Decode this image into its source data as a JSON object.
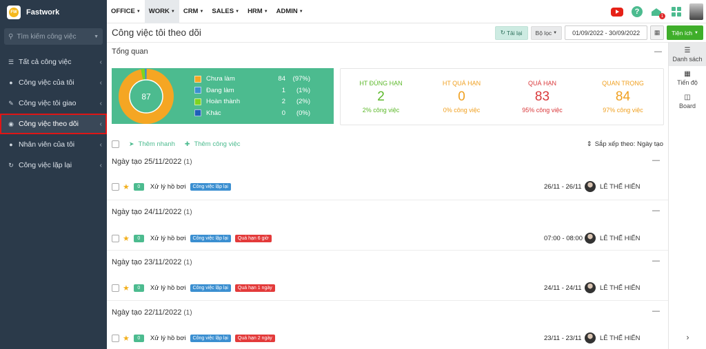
{
  "brand": {
    "name": "Fastwork",
    "logo_text": "FW"
  },
  "sidebar": {
    "search_placeholder": "Tìm kiếm công việc",
    "items": [
      {
        "label": "Tất cả công việc",
        "icon": "list-icon"
      },
      {
        "label": "Công việc của tôi",
        "icon": "user-icon"
      },
      {
        "label": "Công việc tôi giao",
        "icon": "pencil-icon"
      },
      {
        "label": "Công việc theo dõi",
        "icon": "eye-icon",
        "active": true
      },
      {
        "label": "Nhân viên của tôi",
        "icon": "users-icon"
      },
      {
        "label": "Công việc lặp lại",
        "icon": "repeat-icon"
      }
    ]
  },
  "topnav": {
    "items": [
      "OFFICE",
      "WORK",
      "CRM",
      "SALES",
      "HRM",
      "ADMIN"
    ],
    "active": "WORK",
    "notification_count": "1"
  },
  "titlebar": {
    "title": "Công việc tôi theo dõi",
    "reload_label": "Tải lại",
    "filter_label": "Bộ lọc",
    "date_range": "01/09/2022 - 30/09/2022",
    "utility_label": "Tiện ích"
  },
  "right_panel": {
    "items": [
      {
        "label": "Danh sách",
        "icon": "list-view-icon",
        "active": true
      },
      {
        "label": "Tiến độ",
        "icon": "table-icon"
      },
      {
        "label": "Board",
        "icon": "board-icon"
      }
    ]
  },
  "overview": {
    "title": "Tổng quan",
    "total": "87",
    "legend": [
      {
        "name": "Chưa làm",
        "count": "84",
        "pct": "(97%)",
        "color": "#f5a623"
      },
      {
        "name": "Đang làm",
        "count": "1",
        "pct": "(1%)",
        "color": "#3b8fd1"
      },
      {
        "name": "Hoàn thành",
        "count": "2",
        "pct": "(2%)",
        "color": "#7ed321"
      },
      {
        "name": "Khác",
        "count": "0",
        "pct": "(0%)",
        "color": "#1f5fb8"
      }
    ],
    "kpis": [
      {
        "label": "HT ĐÚNG HẠN",
        "value": "2",
        "sub": "2% công việc",
        "color": "#5cb82a"
      },
      {
        "label": "HT QUÁ HẠN",
        "value": "0",
        "sub": "0% công việc",
        "color": "#f0a020"
      },
      {
        "label": "QUÁ HẠN",
        "value": "83",
        "sub": "95% công việc",
        "color": "#d9383a"
      },
      {
        "label": "QUAN TRỌNG",
        "value": "84",
        "sub": "97% công việc",
        "color": "#f0a020"
      }
    ]
  },
  "actions": {
    "quick_add": "Thêm nhanh",
    "add_task": "Thêm công việc",
    "sort_label": "Sắp xếp theo: Ngày tạo"
  },
  "groups": [
    {
      "title": "Ngày tạo 25/11/2022",
      "count": "(1)",
      "task": {
        "num": "0",
        "name": "Xử lý hồ bơi",
        "tags": [
          {
            "text": "Công việc lặp lại",
            "type": "repeat"
          }
        ],
        "time": "26/11 - 26/11",
        "user": "LÊ THẾ HIỂN"
      }
    },
    {
      "title": "Ngày tạo 24/11/2022",
      "count": "(1)",
      "task": {
        "num": "0",
        "name": "Xử lý hồ bơi",
        "tags": [
          {
            "text": "Công việc lặp lại",
            "type": "repeat"
          },
          {
            "text": "Quá hạn 6 giờ",
            "type": "late"
          }
        ],
        "time": "07:00 - 08:00",
        "user": "LÊ THẾ HIỂN"
      }
    },
    {
      "title": "Ngày tạo 23/11/2022",
      "count": "(1)",
      "task": {
        "num": "0",
        "name": "Xử lý hồ bơi",
        "tags": [
          {
            "text": "Công việc lặp lại",
            "type": "repeat"
          },
          {
            "text": "Quá hạn 1 ngày",
            "type": "late"
          }
        ],
        "time": "24/11 - 24/11",
        "user": "LÊ THẾ HIỂN"
      }
    },
    {
      "title": "Ngày tạo 22/11/2022",
      "count": "(1)",
      "task": {
        "num": "0",
        "name": "Xử lý hồ bơi",
        "tags": [
          {
            "text": "Công việc lặp lại",
            "type": "repeat"
          },
          {
            "text": "Quá hạn 2 ngày",
            "type": "late"
          }
        ],
        "time": "23/11 - 23/11",
        "user": "LÊ THẾ HIỂN"
      }
    }
  ]
}
